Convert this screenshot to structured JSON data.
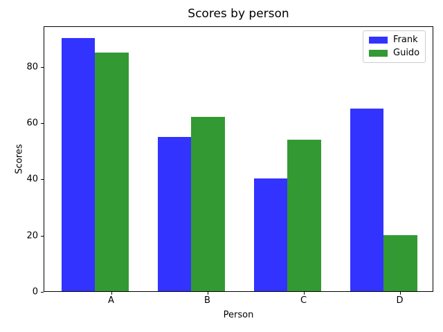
{
  "chart_data": {
    "type": "bar",
    "title": "Scores by person",
    "xlabel": "Person",
    "ylabel": "Scores",
    "categories": [
      "A",
      "B",
      "C",
      "D"
    ],
    "series": [
      {
        "name": "Frank",
        "color": "#3333ff",
        "values": [
          90,
          55,
          40,
          65
        ]
      },
      {
        "name": "Guido",
        "color": "#339933",
        "values": [
          85,
          62,
          54,
          20
        ]
      }
    ],
    "ylim": [
      0,
      94.5
    ],
    "yticks": [
      0,
      20,
      40,
      60,
      80
    ],
    "grid": false,
    "legend_position": "upper right",
    "colors": {
      "background": "#ffffff",
      "spine": "#000000",
      "text": "#000000",
      "legend_border": "#cccccc"
    }
  }
}
